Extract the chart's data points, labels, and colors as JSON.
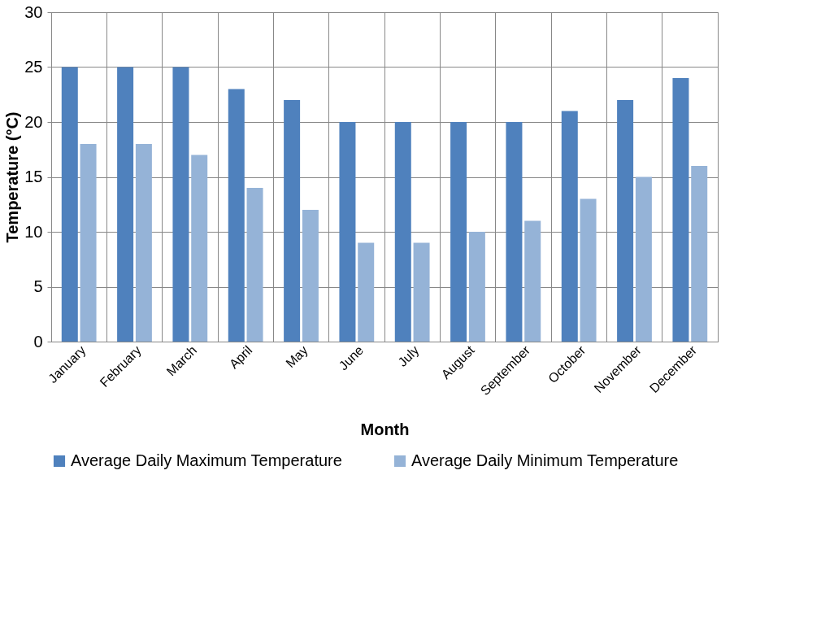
{
  "chart_data": {
    "type": "bar",
    "xlabel": "Month",
    "ylabel": "Temperature (°C)",
    "categories": [
      "January",
      "February",
      "March",
      "April",
      "May",
      "June",
      "July",
      "August",
      "September",
      "October",
      "November",
      "December"
    ],
    "series": [
      {
        "name": "Average Daily Maximum Temperature",
        "color": "#4f81bd",
        "values": [
          25,
          25,
          25,
          23,
          22,
          20,
          20,
          20,
          20,
          21,
          22,
          24
        ]
      },
      {
        "name": "Average Daily Minimum Temperature",
        "color": "#95b3d7",
        "values": [
          18,
          18,
          17,
          14,
          12,
          9,
          9,
          10,
          11,
          13,
          15,
          16
        ]
      }
    ],
    "ylim": [
      0,
      30
    ],
    "yticks": [
      0,
      5,
      10,
      15,
      20,
      25,
      30
    ],
    "grid": true,
    "legend": "bottom"
  }
}
